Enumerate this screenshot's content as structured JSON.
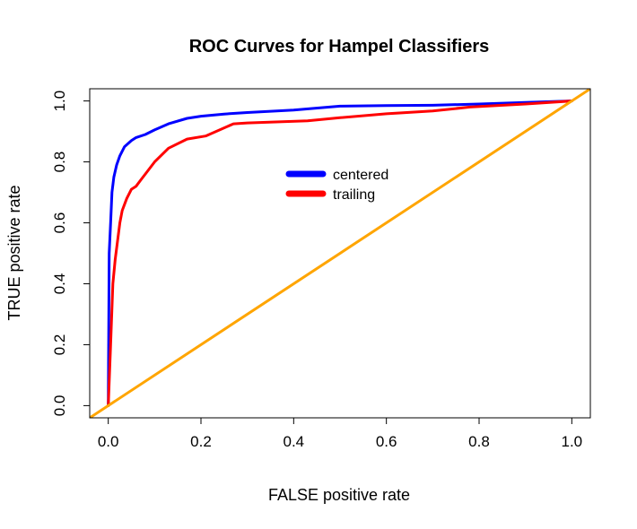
{
  "chart_data": {
    "type": "line",
    "title": "ROC Curves for Hampel Classifiers",
    "xlabel": "FALSE positive rate",
    "ylabel": "TRUE positive rate",
    "xlim": [
      -0.04,
      1.04
    ],
    "ylim": [
      -0.04,
      1.04
    ],
    "x_ticks": [
      "0.0",
      "0.2",
      "0.4",
      "0.6",
      "0.8",
      "1.0"
    ],
    "y_ticks": [
      "0.0",
      "0.2",
      "0.4",
      "0.6",
      "0.8",
      "1.0"
    ],
    "grid": false,
    "legend": {
      "position": "center-top",
      "border": false
    },
    "series": [
      {
        "name": "centered",
        "color": "#0000ff",
        "x": [
          0.0,
          0.002,
          0.005,
          0.008,
          0.012,
          0.018,
          0.025,
          0.035,
          0.05,
          0.06,
          0.08,
          0.1,
          0.13,
          0.17,
          0.2,
          0.25,
          0.3,
          0.4,
          0.5,
          0.6,
          0.7,
          0.8,
          0.9,
          1.0
        ],
        "y": [
          0.0,
          0.5,
          0.6,
          0.7,
          0.75,
          0.79,
          0.82,
          0.85,
          0.87,
          0.88,
          0.89,
          0.905,
          0.925,
          0.943,
          0.95,
          0.957,
          0.962,
          0.97,
          0.983,
          0.985,
          0.986,
          0.99,
          0.995,
          1.0
        ]
      },
      {
        "name": "trailing",
        "color": "#ff0000",
        "x": [
          0.0,
          0.005,
          0.01,
          0.015,
          0.02,
          0.025,
          0.03,
          0.04,
          0.05,
          0.06,
          0.07,
          0.08,
          0.1,
          0.13,
          0.17,
          0.21,
          0.27,
          0.3,
          0.43,
          0.5,
          0.6,
          0.7,
          0.78,
          0.9,
          1.0
        ],
        "y": [
          0.0,
          0.2,
          0.4,
          0.48,
          0.54,
          0.6,
          0.64,
          0.68,
          0.71,
          0.72,
          0.74,
          0.76,
          0.8,
          0.845,
          0.875,
          0.885,
          0.925,
          0.928,
          0.935,
          0.945,
          0.958,
          0.967,
          0.98,
          0.99,
          1.0
        ]
      },
      {
        "name": "",
        "color": "#ffa500",
        "x": [
          -0.04,
          1.04
        ],
        "y": [
          -0.04,
          1.04
        ]
      }
    ]
  }
}
